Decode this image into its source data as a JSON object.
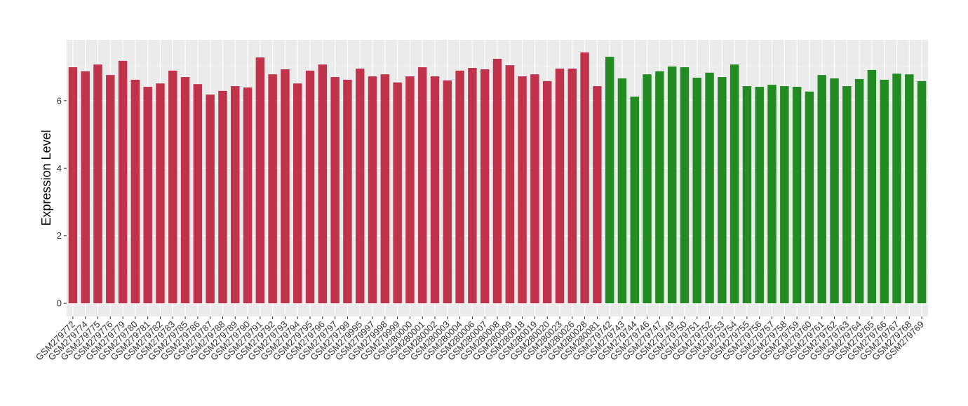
{
  "chart_data": {
    "type": "bar",
    "y_label": "Expression Level",
    "categories": [
      "GSM279772",
      "GSM279774",
      "GSM279775",
      "GSM279776",
      "GSM279779",
      "GSM279780",
      "GSM279781",
      "GSM279782",
      "GSM279783",
      "GSM279785",
      "GSM279786",
      "GSM279787",
      "GSM279788",
      "GSM279789",
      "GSM279790",
      "GSM279791",
      "GSM279792",
      "GSM279793",
      "GSM279794",
      "GSM279795",
      "GSM279796",
      "GSM279797",
      "GSM279799",
      "GSM279995",
      "GSM279997",
      "GSM279998",
      "GSM279999",
      "GSM280000",
      "GSM280001",
      "GSM280002",
      "GSM280003",
      "GSM280004",
      "GSM280006",
      "GSM280007",
      "GSM280008",
      "GSM280009",
      "GSM280018",
      "GSM280019",
      "GSM280020",
      "GSM280023",
      "GSM280026",
      "GSM280028",
      "GSM280081",
      "GSM279742",
      "GSM279743",
      "GSM279744",
      "GSM279746",
      "GSM279747",
      "GSM279749",
      "GSM279750",
      "GSM279751",
      "GSM279752",
      "GSM279753",
      "GSM279754",
      "GSM279755",
      "GSM279756",
      "GSM279757",
      "GSM279758",
      "GSM279759",
      "GSM279760",
      "GSM279761",
      "GSM279762",
      "GSM279763",
      "GSM279764",
      "GSM279765",
      "GSM279766",
      "GSM279767",
      "GSM279768",
      "GSM279769"
    ],
    "values": [
      6.99,
      6.87,
      7.07,
      6.76,
      7.18,
      6.62,
      6.41,
      6.51,
      6.89,
      6.7,
      6.49,
      6.18,
      6.29,
      6.43,
      6.39,
      7.28,
      6.78,
      6.93,
      6.51,
      6.89,
      7.07,
      6.7,
      6.62,
      6.95,
      6.72,
      6.78,
      6.54,
      6.72,
      6.99,
      6.72,
      6.6,
      6.89,
      6.97,
      6.93,
      7.24,
      7.05,
      6.72,
      6.78,
      6.58,
      6.95,
      6.95,
      7.43,
      6.43,
      7.3,
      6.66,
      6.12,
      6.78,
      6.87,
      7.01,
      6.99,
      6.68,
      6.83,
      6.7,
      7.07,
      6.43,
      6.41,
      6.47,
      6.43,
      6.41,
      6.27,
      6.76,
      6.66,
      6.43,
      6.64,
      6.91,
      6.62,
      6.8,
      6.78,
      6.58
    ],
    "colors": [
      "#c0334a",
      "#c0334a",
      "#c0334a",
      "#c0334a",
      "#c0334a",
      "#c0334a",
      "#c0334a",
      "#c0334a",
      "#c0334a",
      "#c0334a",
      "#c0334a",
      "#c0334a",
      "#c0334a",
      "#c0334a",
      "#c0334a",
      "#c0334a",
      "#c0334a",
      "#c0334a",
      "#c0334a",
      "#c0334a",
      "#c0334a",
      "#c0334a",
      "#c0334a",
      "#c0334a",
      "#c0334a",
      "#c0334a",
      "#c0334a",
      "#c0334a",
      "#c0334a",
      "#c0334a",
      "#c0334a",
      "#c0334a",
      "#c0334a",
      "#c0334a",
      "#c0334a",
      "#c0334a",
      "#c0334a",
      "#c0334a",
      "#c0334a",
      "#c0334a",
      "#c0334a",
      "#c0334a",
      "#c0334a",
      "#228b22",
      "#228b22",
      "#228b22",
      "#228b22",
      "#228b22",
      "#228b22",
      "#228b22",
      "#228b22",
      "#228b22",
      "#228b22",
      "#228b22",
      "#228b22",
      "#228b22",
      "#228b22",
      "#228b22",
      "#228b22",
      "#228b22",
      "#228b22",
      "#228b22",
      "#228b22",
      "#228b22",
      "#228b22",
      "#228b22",
      "#228b22",
      "#228b22",
      "#228b22"
    ],
    "ylim": [
      -0.39,
      7.8
    ],
    "yticks": [
      0,
      2,
      4,
      6
    ],
    "grid": true
  }
}
